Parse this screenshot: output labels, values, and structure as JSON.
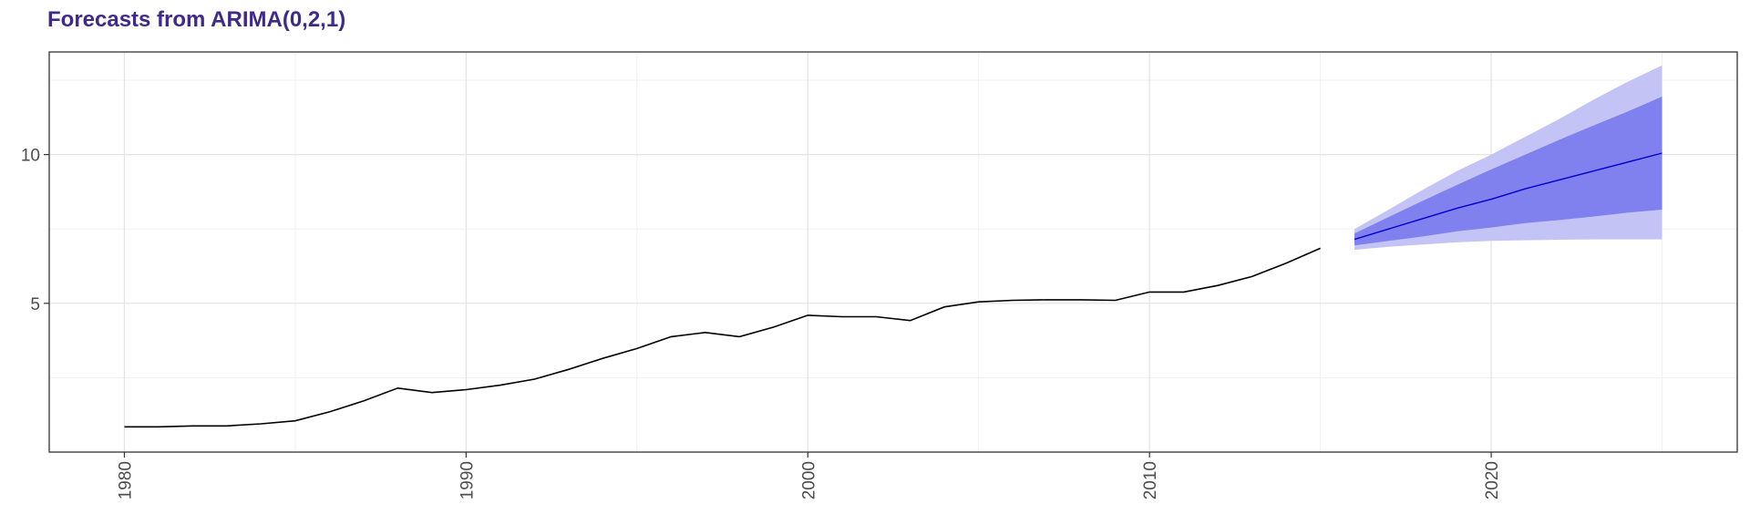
{
  "chart_data": {
    "type": "line",
    "title": "Forecasts from ARIMA(0,2,1)",
    "xlabel": "",
    "ylabel": "",
    "xlim": [
      1977.8,
      2027.2
    ],
    "ylim": [
      0.0,
      13.45
    ],
    "x_ticks": [
      1980,
      1990,
      2000,
      2010,
      2020
    ],
    "y_ticks": [
      5,
      10
    ],
    "grid": true,
    "colors": {
      "history": "#000000",
      "forecast": "#0000cc",
      "band80": "#8080ee",
      "band95": "#c3c3f5",
      "title": "#3f2a8c"
    },
    "series": [
      {
        "role": "history",
        "x": [
          1980,
          1981,
          1982,
          1983,
          1984,
          1985,
          1986,
          1987,
          1988,
          1989,
          1990,
          1991,
          1992,
          1993,
          1994,
          1995,
          1996,
          1997,
          1998,
          1999,
          2000,
          2001,
          2002,
          2003,
          2004,
          2005,
          2006,
          2007,
          2008,
          2009,
          2010,
          2011,
          2012,
          2013,
          2014,
          2015
        ],
        "values": [
          0.85,
          0.85,
          0.88,
          0.88,
          0.95,
          1.05,
          1.35,
          1.72,
          2.15,
          2.0,
          2.1,
          2.25,
          2.45,
          2.78,
          3.15,
          3.48,
          3.88,
          4.02,
          3.88,
          4.2,
          4.6,
          4.55,
          4.55,
          4.42,
          4.88,
          5.05,
          5.1,
          5.12,
          5.12,
          5.1,
          5.38,
          5.38,
          5.6,
          5.9,
          6.35,
          6.85
        ]
      },
      {
        "role": "forecast",
        "x": [
          2016,
          2017,
          2018,
          2019,
          2020,
          2021,
          2022,
          2023,
          2024,
          2025
        ],
        "mean": [
          7.15,
          7.5,
          7.85,
          8.2,
          8.5,
          8.85,
          9.15,
          9.45,
          9.75,
          10.05
        ],
        "lo80": [
          6.95,
          7.1,
          7.25,
          7.42,
          7.55,
          7.7,
          7.8,
          7.92,
          8.05,
          8.15
        ],
        "hi80": [
          7.35,
          7.9,
          8.45,
          8.98,
          9.5,
          10.0,
          10.5,
          10.98,
          11.45,
          11.95
        ],
        "lo95": [
          6.8,
          6.9,
          6.98,
          7.05,
          7.1,
          7.12,
          7.14,
          7.15,
          7.15,
          7.15
        ],
        "hi95": [
          7.5,
          8.15,
          8.82,
          9.45,
          10.0,
          10.6,
          11.2,
          11.85,
          12.45,
          13.0
        ]
      }
    ]
  }
}
